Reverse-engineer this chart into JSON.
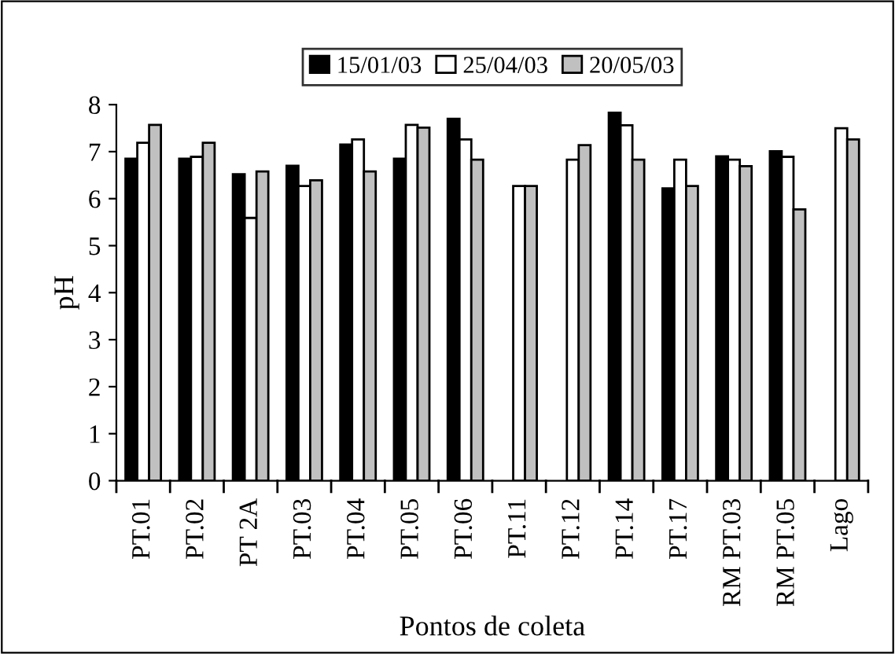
{
  "chart_data": {
    "type": "bar",
    "xlabel": "Pontos de coleta",
    "ylabel": "pH",
    "categories": [
      "PT.01",
      "PT.02",
      "PT 2A",
      "PT.03",
      "PT.04",
      "PT.05",
      "PT.06",
      "PT.11",
      "PT.12",
      "PT.14",
      "PT.17",
      "RM PT.03",
      "RM PT.05",
      "Lago"
    ],
    "series": [
      {
        "name": "15/01/03",
        "color": "#000000",
        "values": [
          6.85,
          6.85,
          6.52,
          6.7,
          7.15,
          6.85,
          7.7,
          null,
          null,
          7.83,
          6.22,
          6.9,
          7.01,
          null
        ]
      },
      {
        "name": "25/04/03",
        "color": "#ffffff",
        "values": [
          7.19,
          6.89,
          5.59,
          6.27,
          7.26,
          7.57,
          7.26,
          6.27,
          6.83,
          7.56,
          6.83,
          6.83,
          6.89,
          7.5
        ]
      },
      {
        "name": "20/05/03",
        "color": "#c0c0c0",
        "values": [
          7.57,
          7.19,
          6.58,
          6.39,
          6.58,
          7.51,
          6.83,
          6.27,
          7.14,
          6.83,
          6.27,
          6.69,
          5.77,
          7.26
        ]
      }
    ],
    "ylim": [
      0,
      8
    ],
    "yticks": [
      0,
      1,
      2,
      3,
      4,
      5,
      6,
      7,
      8
    ],
    "grid": false,
    "legend": "top"
  }
}
